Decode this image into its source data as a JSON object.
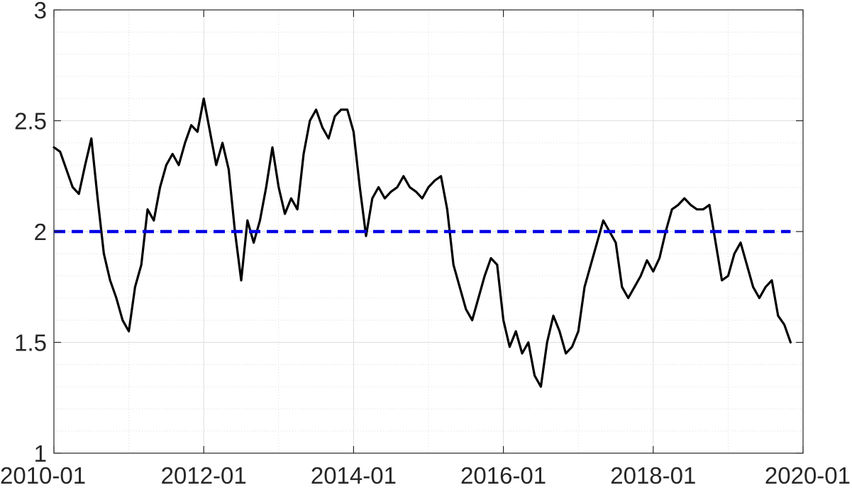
{
  "chart_data": {
    "type": "line",
    "title": "",
    "xlabel": "",
    "ylabel": "",
    "xlim": [
      "2010-01",
      "2020-01"
    ],
    "ylim": [
      1,
      3
    ],
    "x_ticks": [
      "2010-01",
      "2012-01",
      "2014-01",
      "2016-01",
      "2018-01",
      "2020-01"
    ],
    "y_ticks": [
      "1",
      "1.5",
      "2",
      "2.5",
      "3"
    ],
    "grid": "major and minor",
    "series": [
      {
        "style": "solid",
        "color": "#000000",
        "x": [
          "2010-01",
          "2010-02",
          "2010-03",
          "2010-04",
          "2010-05",
          "2010-06",
          "2010-07",
          "2010-08",
          "2010-09",
          "2010-10",
          "2010-11",
          "2010-12",
          "2011-01",
          "2011-02",
          "2011-03",
          "2011-04",
          "2011-05",
          "2011-06",
          "2011-07",
          "2011-08",
          "2011-09",
          "2011-10",
          "2011-11",
          "2011-12",
          "2012-01",
          "2012-02",
          "2012-03",
          "2012-04",
          "2012-05",
          "2012-06",
          "2012-07",
          "2012-08",
          "2012-09",
          "2012-10",
          "2012-11",
          "2012-12",
          "2013-01",
          "2013-02",
          "2013-03",
          "2013-04",
          "2013-05",
          "2013-06",
          "2013-07",
          "2013-08",
          "2013-09",
          "2013-10",
          "2013-11",
          "2013-12",
          "2014-01",
          "2014-02",
          "2014-03",
          "2014-04",
          "2014-05",
          "2014-06",
          "2014-07",
          "2014-08",
          "2014-09",
          "2014-10",
          "2014-11",
          "2014-12",
          "2015-01",
          "2015-02",
          "2015-03",
          "2015-04",
          "2015-05",
          "2015-06",
          "2015-07",
          "2015-08",
          "2015-09",
          "2015-10",
          "2015-11",
          "2015-12",
          "2016-01",
          "2016-02",
          "2016-03",
          "2016-04",
          "2016-05",
          "2016-06",
          "2016-07",
          "2016-08",
          "2016-09",
          "2016-10",
          "2016-11",
          "2016-12",
          "2017-01",
          "2017-02",
          "2017-03",
          "2017-04",
          "2017-05",
          "2017-06",
          "2017-07",
          "2017-08",
          "2017-09",
          "2017-10",
          "2017-11",
          "2017-12",
          "2018-01",
          "2018-02",
          "2018-03",
          "2018-04",
          "2018-05",
          "2018-06",
          "2018-07",
          "2018-08",
          "2018-09",
          "2018-10",
          "2018-11",
          "2018-12",
          "2019-01",
          "2019-02",
          "2019-03",
          "2019-04",
          "2019-05",
          "2019-06",
          "2019-07",
          "2019-08",
          "2019-09",
          "2019-10",
          "2019-11"
        ],
        "values": [
          2.38,
          2.36,
          2.28,
          2.2,
          2.17,
          2.3,
          2.42,
          2.15,
          1.9,
          1.78,
          1.7,
          1.6,
          1.55,
          1.75,
          1.85,
          2.1,
          2.05,
          2.2,
          2.3,
          2.35,
          2.3,
          2.4,
          2.48,
          2.45,
          2.6,
          2.45,
          2.3,
          2.4,
          2.28,
          2.0,
          1.78,
          2.05,
          1.95,
          2.05,
          2.2,
          2.38,
          2.2,
          2.08,
          2.15,
          2.1,
          2.35,
          2.5,
          2.55,
          2.47,
          2.42,
          2.52,
          2.55,
          2.55,
          2.45,
          2.2,
          1.98,
          2.15,
          2.2,
          2.15,
          2.18,
          2.2,
          2.25,
          2.2,
          2.18,
          2.15,
          2.2,
          2.23,
          2.25,
          2.1,
          1.85,
          1.75,
          1.65,
          1.6,
          1.7,
          1.8,
          1.88,
          1.85,
          1.6,
          1.48,
          1.55,
          1.45,
          1.5,
          1.35,
          1.3,
          1.5,
          1.62,
          1.55,
          1.45,
          1.48,
          1.55,
          1.75,
          1.85,
          1.95,
          2.05,
          2.0,
          1.95,
          1.75,
          1.7,
          1.75,
          1.8,
          1.87,
          1.82,
          1.88,
          2.0,
          2.1,
          2.12,
          2.15,
          2.12,
          2.1,
          2.1,
          2.12,
          1.95,
          1.78,
          1.8,
          1.9,
          1.95,
          1.85,
          1.75,
          1.7,
          1.75,
          1.78,
          1.62,
          1.58,
          1.5
        ]
      },
      {
        "style": "dashed",
        "color": "#0000e6",
        "x": [
          "2010-01",
          "2019-11"
        ],
        "values": [
          2,
          2
        ]
      }
    ]
  }
}
